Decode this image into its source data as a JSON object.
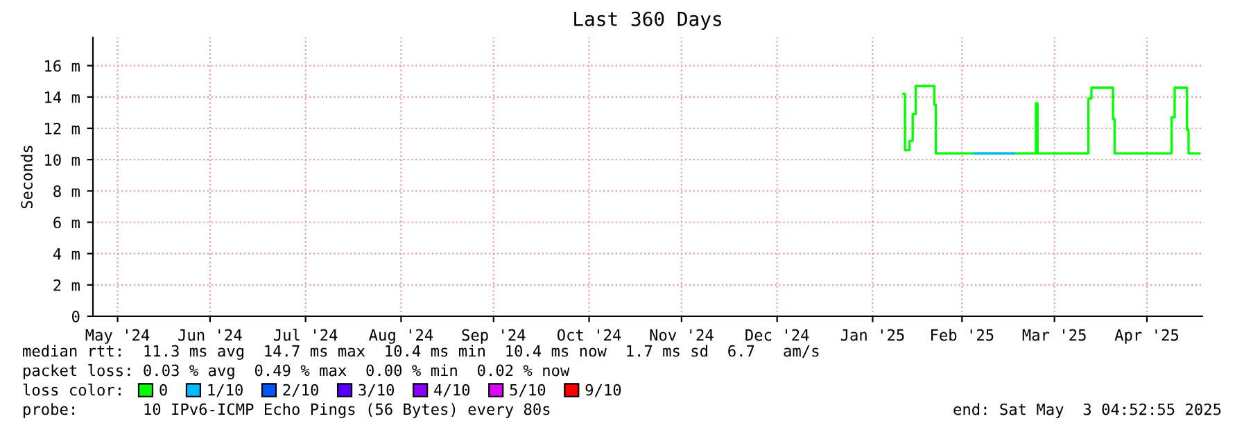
{
  "chart_data": {
    "type": "step",
    "title": "Last 360 Days",
    "ylabel": "Seconds",
    "legend_title": "loss color:",
    "legend": "bottom",
    "grid": true,
    "x": [
      "2025-01-26",
      "2025-01-26T12:00",
      "2025-01-28",
      "2025-01-29",
      "2025-01-30",
      "2025-02-04",
      "2025-02-05",
      "2025-02-05T12:00",
      "2025-03-09",
      "2025-03-10",
      "2025-03-10T12:00",
      "2025-03-27",
      "2025-03-28",
      "2025-04-03",
      "2025-04-04",
      "2025-04-04T12:00",
      "2025-04-23",
      "2025-04-24",
      "2025-04-27",
      "2025-04-28",
      "2025-04-28T12:00",
      "2025-05-02"
    ],
    "series": [
      {
        "name": "0",
        "color": "#00ff00",
        "values": [
          14.2,
          10.6,
          11.2,
          12.9,
          14.7,
          14.7,
          13.5,
          10.4,
          10.4,
          13.6,
          10.4,
          13.9,
          14.6,
          14.6,
          12.6,
          10.4,
          12.7,
          14.6,
          14.6,
          11.9,
          10.4,
          10.4
        ]
      },
      {
        "name": "1/10",
        "color": "#00bbff",
        "x": [
          "2025-02-18",
          "2025-03-03"
        ],
        "values": [
          10.4,
          10.4
        ]
      },
      {
        "name": "2/10",
        "color": "#0055ff",
        "values": [
          null,
          null,
          null,
          null,
          null,
          null,
          null,
          null,
          null,
          null,
          null,
          null,
          null,
          null,
          null,
          null,
          null,
          null,
          null,
          null,
          null,
          null
        ]
      },
      {
        "name": "3/10",
        "color": "#5500ff",
        "values": [
          null,
          null,
          null,
          null,
          null,
          null,
          null,
          null,
          null,
          null,
          null,
          null,
          null,
          null,
          null,
          null,
          null,
          null,
          null,
          null,
          null,
          null
        ]
      },
      {
        "name": "4/10",
        "color": "#8800ff",
        "values": [
          null,
          null,
          null,
          null,
          null,
          null,
          null,
          null,
          null,
          null,
          null,
          null,
          null,
          null,
          null,
          null,
          null,
          null,
          null,
          null,
          null,
          null
        ]
      },
      {
        "name": "5/10",
        "color": "#dd00ff",
        "values": [
          null,
          null,
          null,
          null,
          null,
          null,
          null,
          null,
          null,
          null,
          null,
          null,
          null,
          null,
          null,
          null,
          null,
          null,
          null,
          null,
          null,
          null
        ]
      },
      {
        "name": "9/10",
        "color": "#ff0000",
        "values": [
          null,
          null,
          null,
          null,
          null,
          null,
          null,
          null,
          null,
          null,
          null,
          null,
          null,
          null,
          null,
          null,
          null,
          null,
          null,
          null,
          null,
          null
        ]
      }
    ],
    "xlim": [
      "2024-05-08",
      "2025-05-03"
    ],
    "xticks": [
      {
        "value": "2024-05-16",
        "label": "May '24"
      },
      {
        "value": "2024-06-15",
        "label": "Jun '24"
      },
      {
        "value": "2024-07-16",
        "label": "Jul '24"
      },
      {
        "value": "2024-08-16",
        "label": "Aug '24"
      },
      {
        "value": "2024-09-15",
        "label": "Sep '24"
      },
      {
        "value": "2024-10-16",
        "label": "Oct '24"
      },
      {
        "value": "2024-11-15",
        "label": "Nov '24"
      },
      {
        "value": "2024-12-16",
        "label": "Dec '24"
      },
      {
        "value": "2025-01-16",
        "label": "Jan '25"
      },
      {
        "value": "2025-02-14",
        "label": "Feb '25"
      },
      {
        "value": "2025-03-16",
        "label": "Mar '25"
      },
      {
        "value": "2025-04-15",
        "label": "Apr '25"
      }
    ],
    "ylim": [
      0,
      17.8
    ],
    "yticks": [
      0,
      {
        "value": 2,
        "label": "2 m"
      },
      {
        "value": 4,
        "label": "4 m"
      },
      {
        "value": 6,
        "label": "6 m"
      },
      {
        "value": 8,
        "label": "8 m"
      },
      {
        "value": 10,
        "label": "10 m"
      },
      {
        "value": 12,
        "label": "12 m"
      },
      {
        "value": 14,
        "label": "14 m"
      },
      {
        "value": 16,
        "label": "16 m"
      }
    ],
    "annotations": [
      "median rtt:  11.3 ms avg  14.7 ms max  10.4 ms min  10.4 ms now  1.7 ms sd  6.7   am/s",
      "packet loss: 0.03 % avg  0.49 % max  0.00 % min  0.02 % now",
      "probe:       10 IPv6-ICMP Echo Pings (56 Bytes) every 80s",
      "end: Sat May  3 04:52:55 2025"
    ]
  }
}
